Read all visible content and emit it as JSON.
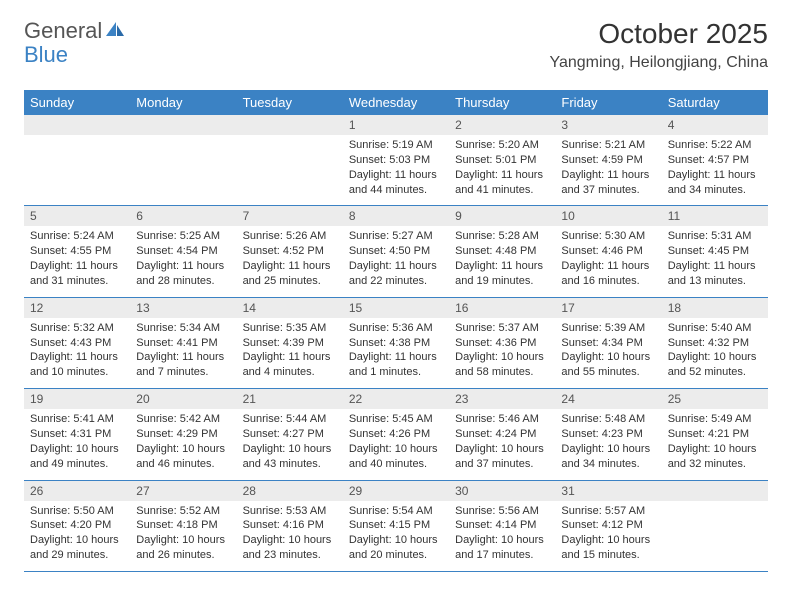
{
  "logo": {
    "text1": "General",
    "text2": "Blue"
  },
  "title": "October 2025",
  "location": "Yangming, Heilongjiang, China",
  "header_bg": "#3b82c4",
  "header_fg": "#ffffff",
  "stripe_bg": "#ececec",
  "rule_color": "#3b82c4",
  "day_headers": [
    "Sunday",
    "Monday",
    "Tuesday",
    "Wednesday",
    "Thursday",
    "Friday",
    "Saturday"
  ],
  "weeks": [
    [
      null,
      null,
      null,
      {
        "n": "1",
        "sr": "5:19 AM",
        "ss": "5:03 PM",
        "dh": "11",
        "dm": "44"
      },
      {
        "n": "2",
        "sr": "5:20 AM",
        "ss": "5:01 PM",
        "dh": "11",
        "dm": "41"
      },
      {
        "n": "3",
        "sr": "5:21 AM",
        "ss": "4:59 PM",
        "dh": "11",
        "dm": "37"
      },
      {
        "n": "4",
        "sr": "5:22 AM",
        "ss": "4:57 PM",
        "dh": "11",
        "dm": "34"
      }
    ],
    [
      {
        "n": "5",
        "sr": "5:24 AM",
        "ss": "4:55 PM",
        "dh": "11",
        "dm": "31"
      },
      {
        "n": "6",
        "sr": "5:25 AM",
        "ss": "4:54 PM",
        "dh": "11",
        "dm": "28"
      },
      {
        "n": "7",
        "sr": "5:26 AM",
        "ss": "4:52 PM",
        "dh": "11",
        "dm": "25"
      },
      {
        "n": "8",
        "sr": "5:27 AM",
        "ss": "4:50 PM",
        "dh": "11",
        "dm": "22"
      },
      {
        "n": "9",
        "sr": "5:28 AM",
        "ss": "4:48 PM",
        "dh": "11",
        "dm": "19"
      },
      {
        "n": "10",
        "sr": "5:30 AM",
        "ss": "4:46 PM",
        "dh": "11",
        "dm": "16"
      },
      {
        "n": "11",
        "sr": "5:31 AM",
        "ss": "4:45 PM",
        "dh": "11",
        "dm": "13"
      }
    ],
    [
      {
        "n": "12",
        "sr": "5:32 AM",
        "ss": "4:43 PM",
        "dh": "11",
        "dm": "10"
      },
      {
        "n": "13",
        "sr": "5:34 AM",
        "ss": "4:41 PM",
        "dh": "11",
        "dm": "7"
      },
      {
        "n": "14",
        "sr": "5:35 AM",
        "ss": "4:39 PM",
        "dh": "11",
        "dm": "4"
      },
      {
        "n": "15",
        "sr": "5:36 AM",
        "ss": "4:38 PM",
        "dh": "11",
        "dm": "1"
      },
      {
        "n": "16",
        "sr": "5:37 AM",
        "ss": "4:36 PM",
        "dh": "10",
        "dm": "58"
      },
      {
        "n": "17",
        "sr": "5:39 AM",
        "ss": "4:34 PM",
        "dh": "10",
        "dm": "55"
      },
      {
        "n": "18",
        "sr": "5:40 AM",
        "ss": "4:32 PM",
        "dh": "10",
        "dm": "52"
      }
    ],
    [
      {
        "n": "19",
        "sr": "5:41 AM",
        "ss": "4:31 PM",
        "dh": "10",
        "dm": "49"
      },
      {
        "n": "20",
        "sr": "5:42 AM",
        "ss": "4:29 PM",
        "dh": "10",
        "dm": "46"
      },
      {
        "n": "21",
        "sr": "5:44 AM",
        "ss": "4:27 PM",
        "dh": "10",
        "dm": "43"
      },
      {
        "n": "22",
        "sr": "5:45 AM",
        "ss": "4:26 PM",
        "dh": "10",
        "dm": "40"
      },
      {
        "n": "23",
        "sr": "5:46 AM",
        "ss": "4:24 PM",
        "dh": "10",
        "dm": "37"
      },
      {
        "n": "24",
        "sr": "5:48 AM",
        "ss": "4:23 PM",
        "dh": "10",
        "dm": "34"
      },
      {
        "n": "25",
        "sr": "5:49 AM",
        "ss": "4:21 PM",
        "dh": "10",
        "dm": "32"
      }
    ],
    [
      {
        "n": "26",
        "sr": "5:50 AM",
        "ss": "4:20 PM",
        "dh": "10",
        "dm": "29"
      },
      {
        "n": "27",
        "sr": "5:52 AM",
        "ss": "4:18 PM",
        "dh": "10",
        "dm": "26"
      },
      {
        "n": "28",
        "sr": "5:53 AM",
        "ss": "4:16 PM",
        "dh": "10",
        "dm": "23"
      },
      {
        "n": "29",
        "sr": "5:54 AM",
        "ss": "4:15 PM",
        "dh": "10",
        "dm": "20"
      },
      {
        "n": "30",
        "sr": "5:56 AM",
        "ss": "4:14 PM",
        "dh": "10",
        "dm": "17"
      },
      {
        "n": "31",
        "sr": "5:57 AM",
        "ss": "4:12 PM",
        "dh": "10",
        "dm": "15"
      },
      null
    ]
  ],
  "labels": {
    "sunrise": "Sunrise:",
    "sunset": "Sunset:",
    "daylight": "Daylight:",
    "hours": "hours",
    "and": "and",
    "minutes": "minutes."
  }
}
